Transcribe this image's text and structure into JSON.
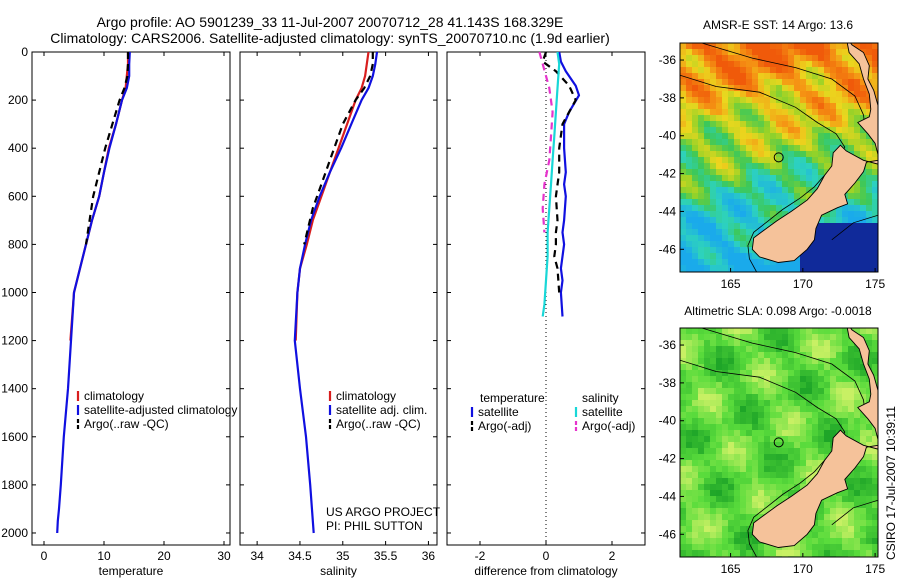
{
  "header": {
    "line1": "Argo profile: AO 5901239_33 11-Jul-2007 20070712_28 41.143S 168.329E",
    "line2": "Climatology: CARS2006. Satellite-adjusted climatology: synTS_20070710.nc (1.9d earlier)"
  },
  "colors": {
    "climatology": "#d81e1e",
    "satellite": "#1010e0",
    "argo": "#000000",
    "cyan": "#19d7d7",
    "magenta": "#e633cc",
    "land": "#f5c29a"
  },
  "chart_data": [
    {
      "type": "line",
      "xlabel": "temperature",
      "ylabel": "",
      "xlim": [
        -2,
        31
      ],
      "ylim": [
        2050,
        0
      ],
      "xticks": [
        0,
        10,
        20,
        30
      ],
      "yticks": [
        0,
        200,
        400,
        600,
        800,
        1000,
        1200,
        1400,
        1600,
        1800,
        2000
      ],
      "legend": [
        "climatology",
        "satellite-adjusted climatology",
        "Argo(..raw -QC)"
      ],
      "series": [
        {
          "name": "climatology",
          "color": "climatology",
          "dash": "solid",
          "x": [
            14,
            14,
            13.8,
            13.6,
            13,
            12,
            10.8,
            10,
            9.2,
            8,
            7,
            6,
            5,
            4.4
          ],
          "y": [
            0,
            50,
            100,
            150,
            200,
            300,
            400,
            500,
            600,
            700,
            800,
            900,
            1000,
            1200
          ]
        },
        {
          "name": "satellite-adjusted climatology",
          "color": "satellite",
          "dash": "solid",
          "x": [
            14.3,
            14.2,
            14.2,
            13.8,
            13,
            12,
            10.9,
            10,
            9.2,
            8,
            7,
            6,
            5,
            4.5,
            4,
            3.3,
            2.8,
            2.5,
            2.3,
            2.2
          ],
          "y": [
            0,
            50,
            100,
            150,
            200,
            300,
            400,
            500,
            600,
            700,
            800,
            900,
            1000,
            1200,
            1400,
            1600,
            1800,
            1900,
            1950,
            2000
          ]
        },
        {
          "name": "Argo(..raw -QC)",
          "color": "argo",
          "dash": "dashed",
          "x": [
            14,
            14,
            13.9,
            13.4,
            12.6,
            11.4,
            10.2,
            9.2,
            8.2,
            7
          ],
          "y": [
            0,
            50,
            100,
            150,
            200,
            300,
            400,
            500,
            600,
            800
          ]
        }
      ]
    },
    {
      "type": "line",
      "xlabel": "salinity",
      "ylabel": "",
      "xlim": [
        33.8,
        36.1
      ],
      "ylim": [
        2050,
        0
      ],
      "xticks": [
        34,
        34.5,
        35,
        35.5,
        36
      ],
      "yticks": [
        0,
        200,
        400,
        600,
        800,
        1000,
        1200,
        1400,
        1600,
        1800,
        2000
      ],
      "legend": [
        "climatology",
        "satellite adj. clim.",
        "Argo(..raw -QC)"
      ],
      "annotation": [
        "US ARGO PROJECT",
        "PI: PHIL SUTTON"
      ],
      "series": [
        {
          "name": "climatology",
          "color": "climatology",
          "dash": "solid",
          "x": [
            35.3,
            35.28,
            35.26,
            35.22,
            35.15,
            35.05,
            34.95,
            34.85,
            34.75,
            34.65,
            34.58,
            34.5,
            34.47,
            34.45
          ],
          "y": [
            0,
            50,
            100,
            150,
            200,
            300,
            400,
            500,
            600,
            700,
            800,
            900,
            1000,
            1200
          ]
        },
        {
          "name": "satellite adj. clim.",
          "color": "satellite",
          "dash": "solid",
          "x": [
            35.4,
            35.38,
            35.35,
            35.3,
            35.22,
            35.1,
            34.98,
            34.85,
            34.73,
            34.63,
            34.56,
            34.5,
            34.47,
            34.44,
            34.5,
            34.57,
            34.62,
            34.66
          ],
          "y": [
            0,
            50,
            100,
            150,
            200,
            300,
            400,
            500,
            600,
            700,
            800,
            900,
            1000,
            1200,
            1400,
            1600,
            1800,
            2000
          ]
        },
        {
          "name": "Argo(..raw -QC)",
          "color": "argo",
          "dash": "dashed",
          "x": [
            35.35,
            35.35,
            35.32,
            35.25,
            35.15,
            35.0,
            34.85,
            34.75,
            34.65,
            34.55
          ],
          "y": [
            0,
            50,
            100,
            150,
            200,
            300,
            450,
            550,
            650,
            800
          ]
        }
      ]
    },
    {
      "type": "line",
      "xlabel": "difference from climatology",
      "ylabel": "",
      "xlim": [
        -3,
        3
      ],
      "ylim": [
        2050,
        0
      ],
      "xticks": [
        -2,
        0,
        2
      ],
      "yticks": [
        0,
        200,
        400,
        600,
        800,
        1000,
        1200,
        1400,
        1600,
        1800,
        2000
      ],
      "legend_headers": [
        "temperature",
        "salinity"
      ],
      "legend": [
        "satellite",
        "Argo(-adj)",
        "satellite",
        "Argo(-adj)"
      ],
      "series": [
        {
          "name": "temperature satellite",
          "color": "satellite",
          "dash": "solid",
          "x": [
            0.4,
            0.45,
            0.6,
            0.9,
            1.0,
            0.7,
            0.55,
            0.55,
            0.6,
            0.55,
            0.6,
            0.55,
            0.5,
            0.55,
            0.5,
            0.45,
            0.5,
            0.45,
            0.5
          ],
          "y": [
            0,
            40,
            80,
            140,
            180,
            250,
            300,
            400,
            500,
            550,
            600,
            700,
            750,
            800,
            850,
            900,
            950,
            1000,
            1100
          ]
        },
        {
          "name": "temperature Argo(-adj)",
          "color": "argo",
          "dash": "dashed",
          "x": [
            0,
            -0.1,
            0.3,
            0.7,
            0.9,
            0.5,
            0.4,
            0.4,
            0.3,
            0.35,
            0.3,
            0.3,
            0.25,
            0.35,
            0.4
          ],
          "y": [
            0,
            40,
            80,
            140,
            200,
            300,
            400,
            500,
            600,
            700,
            750,
            800,
            850,
            900,
            1000
          ]
        },
        {
          "name": "salinity satellite",
          "color": "cyan",
          "dash": "solid",
          "x": [
            0.35,
            0.4,
            0.35,
            0.3,
            0.25,
            0.2,
            0.15,
            0.1,
            0.05,
            0.05,
            0.0,
            -0.05,
            -0.1
          ],
          "y": [
            0,
            50,
            150,
            250,
            350,
            450,
            550,
            650,
            750,
            850,
            950,
            1050,
            1100
          ]
        },
        {
          "name": "salinity Argo(-adj)",
          "color": "magenta",
          "dash": "dashed",
          "x": [
            -0.2,
            -0.1,
            0.1,
            0.2,
            0.15,
            0.1,
            -0.05,
            -0.1,
            -0.05
          ],
          "y": [
            0,
            50,
            150,
            250,
            350,
            450,
            550,
            650,
            750
          ]
        }
      ]
    }
  ],
  "maps": [
    {
      "title": "AMSR-E SST: 14 Argo: 13.6",
      "xticks": [
        "165",
        "170",
        "175"
      ],
      "yticks": [
        "-36",
        "-38",
        "-40",
        "-42",
        "-44",
        "-46"
      ],
      "xlim": [
        161.5,
        175.2
      ],
      "ylim": [
        -47.2,
        -35.1
      ],
      "marker": {
        "lon": 168.329,
        "lat": -41.143
      }
    },
    {
      "title": "Altimetric SLA: 0.098 Argo: -0.0018",
      "xticks": [
        "165",
        "170",
        "175"
      ],
      "yticks": [
        "-36",
        "-38",
        "-40",
        "-42",
        "-44",
        "-46"
      ],
      "xlim": [
        161.5,
        175.2
      ],
      "ylim": [
        -47.2,
        -35.1
      ],
      "marker": {
        "lon": 168.329,
        "lat": -41.143
      }
    }
  ],
  "credit": "CSIRO 17-Jul-2007 10:39:11"
}
